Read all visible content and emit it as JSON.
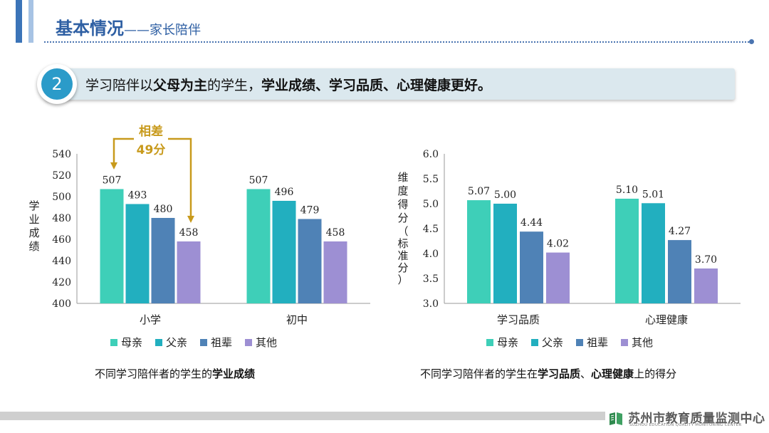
{
  "header": {
    "title": "基本情况",
    "subtitle": "——家长陪伴"
  },
  "banner": {
    "number": "2",
    "text_parts": [
      {
        "text": "学习陪伴以",
        "bold": false
      },
      {
        "text": "父母为主",
        "bold": true
      },
      {
        "text": "的学生，",
        "bold": false
      },
      {
        "text": "学业成绩、学习品质、心理健康更好。",
        "bold": true
      }
    ]
  },
  "chart_data": [
    {
      "type": "bar",
      "title": "",
      "ylabel": "学业成绩",
      "ylim": [
        400,
        540
      ],
      "yticks": [
        400,
        420,
        440,
        460,
        480,
        500,
        520,
        540
      ],
      "categories": [
        "小学",
        "初中"
      ],
      "series": [
        {
          "name": "母亲",
          "values": [
            507,
            507
          ],
          "color": "#3ecfb8"
        },
        {
          "name": "父亲",
          "values": [
            493,
            496
          ],
          "color": "#22afbf"
        },
        {
          "name": "祖辈",
          "values": [
            480,
            479
          ],
          "color": "#4f82b6"
        },
        {
          "name": "其他",
          "values": [
            458,
            458
          ],
          "color": "#9d8fd3"
        }
      ],
      "labels": [
        [
          "507",
          "493",
          "480",
          "458"
        ],
        [
          "507",
          "496",
          "479",
          "458"
        ]
      ],
      "annotation": {
        "line1": "相差",
        "line2": "49分",
        "color": "#c89a1c"
      },
      "caption_parts": [
        {
          "text": "不同学习陪伴者的学生的",
          "bold": false
        },
        {
          "text": "学业成绩",
          "bold": true
        }
      ]
    },
    {
      "type": "bar",
      "title": "",
      "ylabel": "维度得分（标准分）",
      "ylabel_cols": [
        "维度得分",
        "（标准分）"
      ],
      "ylim": [
        3.0,
        6.0
      ],
      "yticks": [
        "3.0",
        "3.5",
        "4.0",
        "4.5",
        "5.0",
        "5.5",
        "6.0"
      ],
      "categories": [
        "学习品质",
        "心理健康"
      ],
      "series": [
        {
          "name": "母亲",
          "values": [
            5.07,
            5.1
          ],
          "color": "#3ecfb8"
        },
        {
          "name": "父亲",
          "values": [
            5.0,
            5.01
          ],
          "color": "#22afbf"
        },
        {
          "name": "祖辈",
          "values": [
            4.44,
            4.27
          ],
          "color": "#4f82b6"
        },
        {
          "name": "其他",
          "values": [
            4.02,
            3.7
          ],
          "color": "#9d8fd3"
        }
      ],
      "labels": [
        [
          "5.07",
          "5.00",
          "4.44",
          "4.02"
        ],
        [
          "5.10",
          "5.01",
          "4.27",
          "3.70"
        ]
      ],
      "caption_parts": [
        {
          "text": "不同学习陪伴者的学生在",
          "bold": false
        },
        {
          "text": "学习品质",
          "bold": true
        },
        {
          "text": "、",
          "bold": false
        },
        {
          "text": "心理健康",
          "bold": true
        },
        {
          "text": "上的得分",
          "bold": false
        }
      ]
    }
  ],
  "footer": {
    "org_name": "苏州市教育质量监测中心",
    "org_name_en": "SUZHOU EDUCATION QUALITY MONITORING CENTER",
    "band_color": "#cfcfcf",
    "logo_color": "#2f8a4e"
  }
}
